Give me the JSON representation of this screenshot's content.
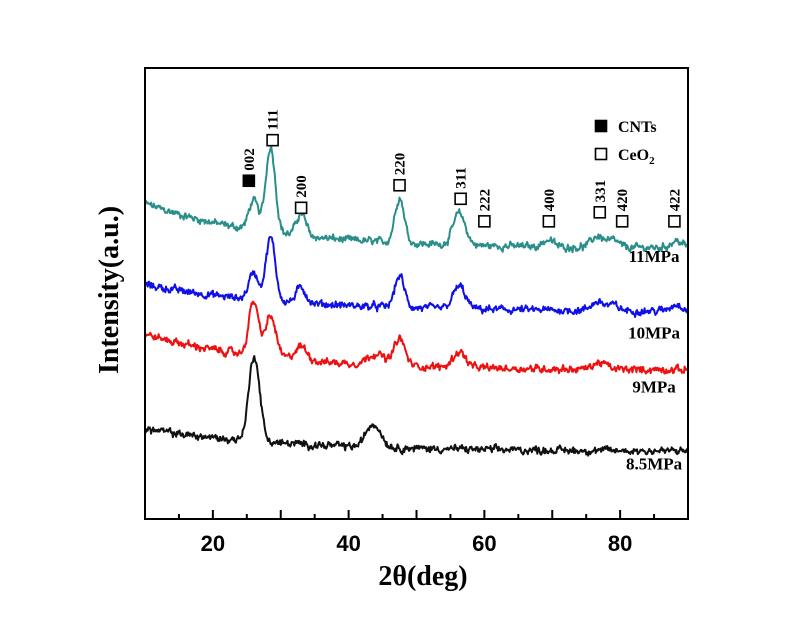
{
  "chart_data": {
    "type": "line",
    "title": "",
    "xlabel": "2θ(deg)",
    "ylabel": "Intensity(a.u.)",
    "xlim": [
      10,
      90
    ],
    "ylim": [
      0,
      100
    ],
    "x_ticks": [
      20,
      40,
      60,
      80
    ],
    "y_ticks": [],
    "grid": false,
    "legend": {
      "placement": "top-right",
      "entries": [
        {
          "marker": "filled-square",
          "label": "CNTs"
        },
        {
          "marker": "open-square",
          "label": "CeO",
          "subscript": "2"
        }
      ]
    },
    "series": [
      {
        "name": "11MPa",
        "color": "#2a8f8a",
        "baseline": 60,
        "slope_start": 10,
        "decay": 18,
        "peaks": [
          [
            26.0,
            6.5,
            0.7
          ],
          [
            28.5,
            19,
            0.7
          ],
          [
            33.0,
            5,
            0.7
          ],
          [
            47.5,
            10,
            0.7
          ],
          [
            56.3,
            7,
            0.9
          ],
          [
            69.4,
            1.5,
            0.8
          ],
          [
            76.7,
            2.5,
            0.9
          ],
          [
            79.0,
            1.5,
            0.8
          ],
          [
            88.3,
            1.5,
            0.9
          ]
        ]
      },
      {
        "name": "10MPa",
        "color": "#1010e8",
        "baseline": 46,
        "slope_start": 6,
        "decay": 20,
        "peaks": [
          [
            26.0,
            6,
            0.7
          ],
          [
            28.5,
            14,
            0.7
          ],
          [
            33.0,
            3.5,
            0.7
          ],
          [
            47.5,
            7,
            0.7
          ],
          [
            56.3,
            5,
            0.9
          ],
          [
            76.7,
            2,
            0.9
          ],
          [
            79.0,
            1.2,
            0.8
          ],
          [
            88.3,
            1.5,
            0.9
          ]
        ]
      },
      {
        "name": "9MPa",
        "color": "#ee1111",
        "baseline": 33,
        "slope_start": 8,
        "decay": 18,
        "peaks": [
          [
            26.0,
            12,
            0.7
          ],
          [
            28.5,
            9,
            0.8
          ],
          [
            33.0,
            3,
            0.9
          ],
          [
            44.0,
            2.5,
            1.2
          ],
          [
            47.5,
            6,
            0.8
          ],
          [
            56.3,
            3.5,
            0.9
          ],
          [
            77.0,
            1.5,
            1.0
          ]
        ]
      },
      {
        "name": "8.5MPa",
        "color": "#111111",
        "baseline": 15,
        "slope_start": 5,
        "decay": 20,
        "peaks": [
          [
            26.1,
            19,
            0.8
          ],
          [
            44.0,
            4,
            1.0
          ],
          [
            43.0,
            2,
            0.8
          ]
        ]
      }
    ],
    "series_labels": [
      {
        "text": "11MPa",
        "x": 85,
        "y": 57
      },
      {
        "text": "10MPa",
        "x": 85,
        "y": 40
      },
      {
        "text": "9MPa",
        "x": 85,
        "y": 28
      },
      {
        "text": "8.5MPa",
        "x": 85,
        "y": 11
      }
    ],
    "peak_markers": [
      {
        "label": "002",
        "x": 25.3,
        "y": 75,
        "marker": "filled-square"
      },
      {
        "label": "111",
        "x": 28.8,
        "y": 84,
        "marker": "open-square"
      },
      {
        "label": "200",
        "x": 33.0,
        "y": 69,
        "marker": "open-square"
      },
      {
        "label": "220",
        "x": 47.5,
        "y": 74,
        "marker": "open-square"
      },
      {
        "label": "311",
        "x": 56.5,
        "y": 71,
        "marker": "open-square"
      },
      {
        "label": "222",
        "x": 60.0,
        "y": 66,
        "marker": "open-square"
      },
      {
        "label": "400",
        "x": 69.5,
        "y": 66,
        "marker": "open-square"
      },
      {
        "label": "331",
        "x": 77.0,
        "y": 68,
        "marker": "open-square"
      },
      {
        "label": "420",
        "x": 80.3,
        "y": 66,
        "marker": "open-square"
      },
      {
        "label": "422",
        "x": 88.0,
        "y": 66,
        "marker": "open-square"
      }
    ]
  }
}
